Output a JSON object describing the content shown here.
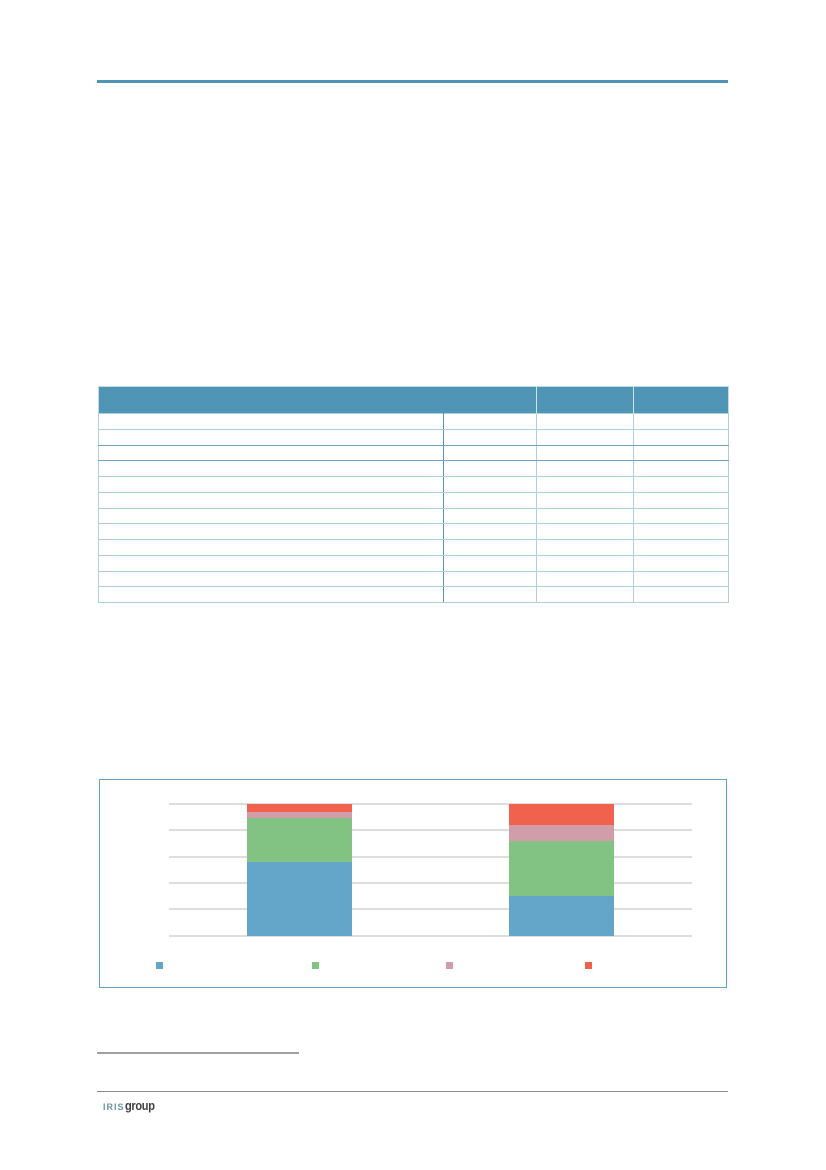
{
  "page": {
    "background": "#ffffff",
    "top_rule_color": "#4e95b5"
  },
  "table": {
    "header_bg": "#5094b6",
    "border_light": "#aecfe0",
    "border_dark": "#6fa3bf",
    "outer_border": "#bfdcea",
    "header_cells": [
      "",
      "",
      ""
    ],
    "rows": [
      [
        "",
        "",
        "",
        ""
      ],
      [
        "",
        "",
        "",
        ""
      ],
      [
        "",
        "",
        "",
        ""
      ],
      [
        "",
        "",
        "",
        ""
      ],
      [
        "",
        "",
        "",
        ""
      ],
      [
        "",
        "",
        "",
        ""
      ],
      [
        "",
        "",
        "",
        ""
      ],
      [
        "",
        "",
        "",
        ""
      ],
      [
        "",
        "",
        "",
        ""
      ],
      [
        "",
        "",
        "",
        ""
      ],
      [
        "",
        "",
        "",
        ""
      ],
      [
        "",
        "",
        "",
        ""
      ]
    ]
  },
  "chart_data": {
    "type": "bar",
    "stacked": true,
    "title": "",
    "xlabel": "",
    "ylabel": "",
    "categories": [
      "",
      ""
    ],
    "series": [
      {
        "name": "",
        "color": "#63a6ca",
        "values": [
          56,
          30
        ]
      },
      {
        "name": "",
        "color": "#82c282",
        "values": [
          33,
          42
        ]
      },
      {
        "name": "",
        "color": "#d29dab",
        "values": [
          5,
          12
        ]
      },
      {
        "name": "",
        "color": "#f1624e",
        "values": [
          6,
          16
        ]
      }
    ],
    "ylim": [
      0,
      100
    ],
    "ytick_step": 20,
    "grid": true,
    "gridline_color": "#dddddd",
    "frame_border_color": "#5fa5bf",
    "legend_position": "bottom"
  },
  "footer": {
    "footnote_rule_color": "#a0a0a0",
    "footer_rule_color": "#8c8c8c",
    "logo_iris": "IRIS",
    "logo_group": "group"
  }
}
